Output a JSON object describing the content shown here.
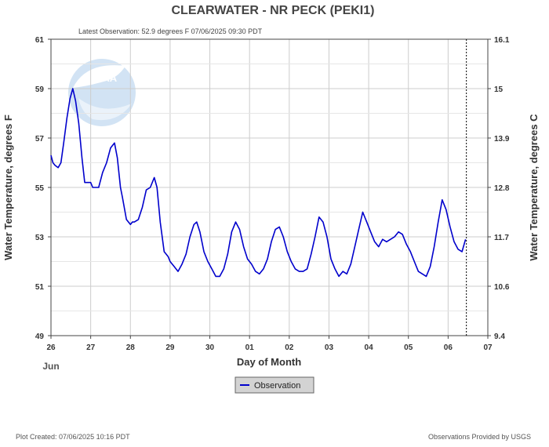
{
  "chart_data": {
    "type": "line",
    "title": "CLEARWATER - NR PECK  (PEKI1)",
    "subtitle": "Latest Observation: 52.9 degrees F 07/06/2025 09:30 PDT",
    "xlabel": "Day of Month",
    "xlabel_month": "Jun",
    "ylabel_left": "Water Temperature, degrees F",
    "ylabel_right": "Water Temperature, degrees C",
    "xlim": [
      0,
      11
    ],
    "ylim": [
      49,
      61
    ],
    "x_ticks": [
      0,
      1,
      2,
      3,
      4,
      5,
      6,
      7,
      8,
      9,
      10,
      11
    ],
    "x_tick_labels": [
      "26",
      "27",
      "28",
      "29",
      "30",
      "01",
      "02",
      "03",
      "04",
      "05",
      "06",
      "07"
    ],
    "y_left_ticks": [
      49,
      51,
      53,
      55,
      57,
      59,
      61
    ],
    "y_left_tick_labels": [
      "49",
      "51",
      "53",
      "55",
      "57",
      "59",
      "61"
    ],
    "y_right_ticks": [
      49,
      51,
      53,
      55,
      57,
      59,
      61
    ],
    "y_right_tick_labels": [
      "9.4",
      "10.6",
      "11.7",
      "12.8",
      "13.9",
      "15",
      "16.1"
    ],
    "grid": true,
    "now_marker_x": 10.46,
    "legend": {
      "placement": "bottom-center",
      "entries": [
        "Observation"
      ]
    },
    "series": [
      {
        "name": "Observation",
        "color": "#0000cc",
        "x": [
          0.0,
          0.05,
          0.1,
          0.18,
          0.25,
          0.32,
          0.4,
          0.48,
          0.55,
          0.62,
          0.7,
          0.78,
          0.85,
          0.92,
          1.0,
          1.05,
          1.1,
          1.2,
          1.3,
          1.4,
          1.5,
          1.6,
          1.67,
          1.75,
          1.8,
          1.9,
          2.0,
          2.05,
          2.1,
          2.2,
          2.3,
          2.4,
          2.5,
          2.6,
          2.67,
          2.75,
          2.85,
          2.95,
          3.0,
          3.1,
          3.2,
          3.3,
          3.4,
          3.5,
          3.6,
          3.67,
          3.75,
          3.85,
          3.95,
          4.05,
          4.15,
          4.25,
          4.35,
          4.45,
          4.55,
          4.65,
          4.75,
          4.85,
          4.95,
          5.05,
          5.15,
          5.25,
          5.35,
          5.45,
          5.55,
          5.65,
          5.75,
          5.85,
          5.95,
          6.05,
          6.15,
          6.25,
          6.35,
          6.45,
          6.55,
          6.65,
          6.75,
          6.85,
          6.95,
          7.05,
          7.15,
          7.25,
          7.35,
          7.45,
          7.55,
          7.65,
          7.75,
          7.85,
          7.95,
          8.05,
          8.15,
          8.25,
          8.35,
          8.45,
          8.55,
          8.65,
          8.75,
          8.85,
          8.95,
          9.05,
          9.15,
          9.25,
          9.35,
          9.45,
          9.55,
          9.65,
          9.75,
          9.85,
          9.95,
          10.05,
          10.15,
          10.25,
          10.35,
          10.44
        ],
        "values": [
          56.3,
          56.0,
          55.9,
          55.8,
          56.0,
          56.8,
          57.8,
          58.6,
          59.0,
          58.5,
          57.6,
          56.2,
          55.2,
          55.2,
          55.2,
          55.0,
          55.0,
          55.0,
          55.6,
          56.0,
          56.6,
          56.8,
          56.2,
          55.0,
          54.6,
          53.7,
          53.5,
          53.6,
          53.6,
          53.7,
          54.2,
          54.9,
          55.0,
          55.4,
          55.0,
          53.6,
          52.4,
          52.2,
          52.0,
          51.8,
          51.6,
          51.9,
          52.3,
          53.0,
          53.5,
          53.6,
          53.2,
          52.4,
          52.0,
          51.7,
          51.4,
          51.4,
          51.7,
          52.3,
          53.2,
          53.6,
          53.3,
          52.6,
          52.1,
          51.9,
          51.6,
          51.5,
          51.7,
          52.1,
          52.8,
          53.3,
          53.4,
          53.0,
          52.4,
          52.0,
          51.7,
          51.6,
          51.6,
          51.7,
          52.3,
          53.0,
          53.8,
          53.6,
          53.0,
          52.1,
          51.7,
          51.4,
          51.6,
          51.5,
          51.9,
          52.6,
          53.3,
          54.0,
          53.6,
          53.2,
          52.8,
          52.6,
          52.9,
          52.8,
          52.9,
          53.0,
          53.2,
          53.1,
          52.7,
          52.4,
          52.0,
          51.6,
          51.5,
          51.4,
          51.8,
          52.6,
          53.6,
          54.5,
          54.1,
          53.4,
          52.8,
          52.5,
          52.4,
          52.9
        ]
      }
    ]
  },
  "watermark": {
    "text": "NOAA"
  },
  "footer": {
    "left": "Plot Created: 07/06/2025 10:16 PDT",
    "right": "Observations Provided by USGS"
  }
}
